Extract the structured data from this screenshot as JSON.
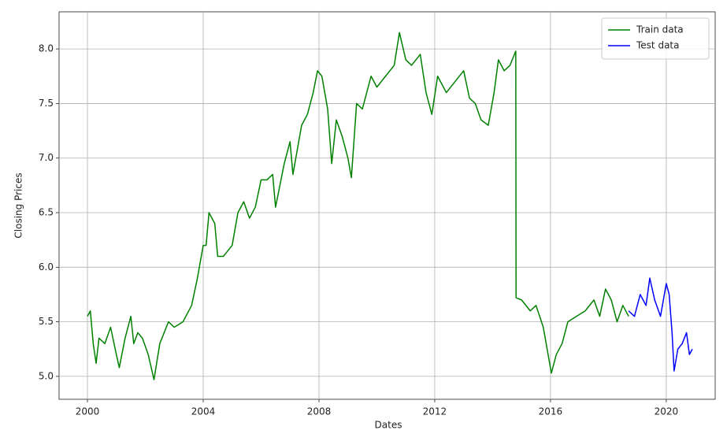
{
  "chart_data": {
    "type": "line",
    "xlabel": "Dates",
    "ylabel": "Closing Prices",
    "xlim": [
      1999.02,
      2021.69
    ],
    "ylim": [
      4.79,
      8.34
    ],
    "xticks": [
      2000,
      2004,
      2008,
      2012,
      2016,
      2020
    ],
    "yticks": [
      {
        "value": 5,
        "label": "5.0"
      },
      {
        "value": 5.5,
        "label": "5.5"
      },
      {
        "value": 6,
        "label": "6.0"
      },
      {
        "value": 6.5,
        "label": "6.5"
      },
      {
        "value": 7,
        "label": "7.0"
      },
      {
        "value": 7.5,
        "label": "7.5"
      },
      {
        "value": 8,
        "label": "8.0"
      }
    ],
    "grid": true,
    "legend": "upper right",
    "series": [
      {
        "name": "Train data",
        "color": "#008000",
        "x": [
          2000.0,
          2000.1,
          2000.2,
          2000.3,
          2000.4,
          2000.6,
          2000.8,
          2001.0,
          2001.1,
          2001.3,
          2001.5,
          2001.6,
          2001.74,
          2001.9,
          2002.1,
          2002.3,
          2002.5,
          2002.8,
          2003.0,
          2003.3,
          2003.6,
          2003.8,
          2004.0,
          2004.1,
          2004.2,
          2004.4,
          2004.5,
          2004.7,
          2005.0,
          2005.2,
          2005.4,
          2005.6,
          2005.8,
          2006.0,
          2006.2,
          2006.4,
          2006.5,
          2006.8,
          2007.0,
          2007.1,
          2007.4,
          2007.6,
          2007.8,
          2007.95,
          2008.1,
          2008.3,
          2008.44,
          2008.6,
          2008.8,
          2009.0,
          2009.12,
          2009.3,
          2009.5,
          2009.8,
          2010.0,
          2010.3,
          2010.6,
          2010.78,
          2011.0,
          2011.2,
          2011.5,
          2011.7,
          2011.9,
          2012.1,
          2012.4,
          2012.7,
          2013.0,
          2013.2,
          2013.4,
          2013.6,
          2013.85,
          2014.05,
          2014.2,
          2014.4,
          2014.6,
          2014.8,
          2014.81,
          2015.0,
          2015.3,
          2015.5,
          2015.75,
          2016.03,
          2016.2,
          2016.4,
          2016.6,
          2016.9,
          2017.2,
          2017.5,
          2017.7,
          2017.9,
          2018.1,
          2018.3,
          2018.5,
          2018.7
        ],
        "values": [
          5.55,
          5.6,
          5.3,
          5.12,
          5.35,
          5.3,
          5.45,
          5.2,
          5.08,
          5.35,
          5.55,
          5.3,
          5.4,
          5.35,
          5.2,
          4.97,
          5.3,
          5.5,
          5.45,
          5.5,
          5.65,
          5.9,
          6.2,
          6.2,
          6.5,
          6.4,
          6.1,
          6.1,
          6.2,
          6.5,
          6.6,
          6.45,
          6.55,
          6.8,
          6.8,
          6.85,
          6.55,
          6.95,
          7.15,
          6.85,
          7.3,
          7.4,
          7.6,
          7.8,
          7.75,
          7.45,
          6.95,
          7.35,
          7.2,
          7.0,
          6.82,
          7.5,
          7.45,
          7.75,
          7.65,
          7.75,
          7.85,
          8.15,
          7.9,
          7.85,
          7.95,
          7.6,
          7.4,
          7.75,
          7.6,
          7.7,
          7.8,
          7.55,
          7.5,
          7.35,
          7.3,
          7.6,
          7.9,
          7.8,
          7.85,
          7.98,
          5.72,
          5.7,
          5.6,
          5.65,
          5.45,
          5.03,
          5.2,
          5.3,
          5.5,
          5.55,
          5.6,
          5.7,
          5.55,
          5.8,
          5.7,
          5.5,
          5.65,
          5.55
        ]
      },
      {
        "name": "Test data",
        "color": "#0000ff",
        "x": [
          2018.7,
          2018.9,
          2019.1,
          2019.3,
          2019.43,
          2019.6,
          2019.8,
          2020.0,
          2020.1,
          2020.2,
          2020.27,
          2020.4,
          2020.55,
          2020.7,
          2020.8,
          2020.9
        ],
        "values": [
          5.6,
          5.55,
          5.75,
          5.65,
          5.9,
          5.7,
          5.55,
          5.85,
          5.75,
          5.4,
          5.05,
          5.25,
          5.3,
          5.4,
          5.2,
          5.25
        ]
      }
    ]
  }
}
